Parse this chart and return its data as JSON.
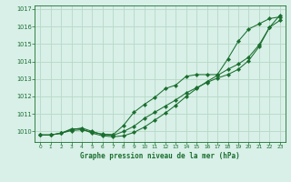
{
  "title": "Graphe pression niveau de la mer (hPa)",
  "bg_color": "#d8f0e8",
  "grid_color": "#b8d8c8",
  "line_color": "#1a6e2e",
  "xlim": [
    -0.5,
    23.5
  ],
  "ylim": [
    1009.4,
    1017.2
  ],
  "yticks": [
    1010,
    1011,
    1012,
    1013,
    1014,
    1015,
    1016,
    1017
  ],
  "xticks": [
    0,
    1,
    2,
    3,
    4,
    5,
    6,
    7,
    8,
    9,
    10,
    11,
    12,
    13,
    14,
    15,
    16,
    17,
    18,
    19,
    20,
    21,
    22,
    23
  ],
  "series1": [
    1009.8,
    1009.8,
    1009.9,
    1010.05,
    1010.1,
    1009.95,
    1009.85,
    1009.82,
    1010.35,
    1011.1,
    1011.55,
    1011.95,
    1012.45,
    1012.65,
    1013.15,
    1013.25,
    1013.25,
    1013.25,
    1014.15,
    1015.15,
    1015.85,
    1016.15,
    1016.45,
    1016.55
  ],
  "series2": [
    1009.8,
    1009.8,
    1009.9,
    1010.1,
    1010.2,
    1010.0,
    1009.82,
    1009.78,
    1010.0,
    1010.3,
    1010.75,
    1011.1,
    1011.45,
    1011.8,
    1012.2,
    1012.5,
    1012.8,
    1013.05,
    1013.25,
    1013.55,
    1014.05,
    1014.85,
    1015.95,
    1016.35
  ],
  "series3": [
    1009.8,
    1009.8,
    1009.9,
    1010.15,
    1010.15,
    1009.9,
    1009.75,
    1009.7,
    1009.75,
    1009.95,
    1010.25,
    1010.65,
    1011.05,
    1011.5,
    1012.0,
    1012.45,
    1012.85,
    1013.2,
    1013.55,
    1013.85,
    1014.25,
    1014.95,
    1015.95,
    1016.65
  ]
}
